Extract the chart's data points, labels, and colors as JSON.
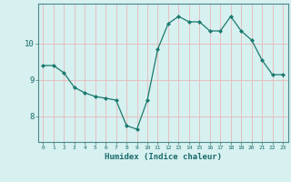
{
  "x": [
    0,
    1,
    2,
    3,
    4,
    5,
    6,
    7,
    8,
    9,
    10,
    11,
    12,
    13,
    14,
    15,
    16,
    17,
    18,
    19,
    20,
    21,
    22,
    23
  ],
  "y": [
    9.4,
    9.4,
    9.2,
    8.8,
    8.65,
    8.55,
    8.5,
    8.45,
    7.75,
    7.65,
    8.45,
    9.85,
    10.55,
    10.75,
    10.6,
    10.6,
    10.35,
    10.35,
    10.75,
    10.35,
    10.1,
    9.55,
    9.15,
    9.15
  ],
  "line_color": "#1a7a6e",
  "marker": "D",
  "marker_size": 2,
  "bg_color": "#d7f0f0",
  "grid_color": "#e8b8b8",
  "axis_label": "Humidex (Indice chaleur)",
  "yticks": [
    8,
    9,
    10
  ],
  "ylim": [
    7.3,
    11.1
  ],
  "xlim": [
    -0.5,
    23.5
  ]
}
